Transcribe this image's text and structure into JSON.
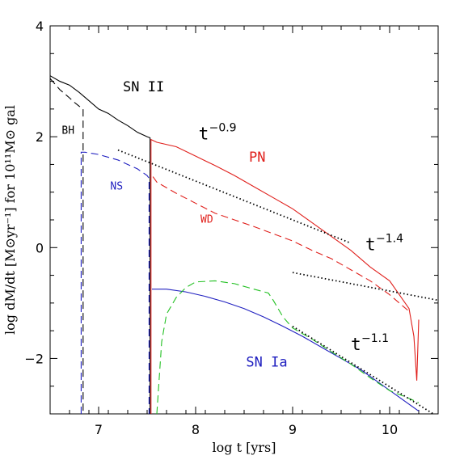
{
  "chart_data": {
    "type": "line",
    "xlabel": "log t [yrs]",
    "ylabel": "log dM/dt [M⊙yr⁻¹] for 10¹¹M⊙ gal",
    "xlim": [
      6.5,
      10.5
    ],
    "ylim": [
      -3,
      4
    ],
    "x_ticks": [
      7,
      8,
      9,
      10
    ],
    "y_ticks": [
      -2,
      0,
      2,
      4
    ],
    "x_tick_labels": [
      "7",
      "8",
      "9",
      "10"
    ],
    "y_tick_labels": [
      "−2",
      "0",
      "2",
      "4"
    ],
    "grid": false,
    "colors": {
      "black": "#000000",
      "red": "#e0201c",
      "blue": "#2020c0",
      "green": "#22c022"
    },
    "series": [
      {
        "name": "SN II",
        "color": "black",
        "dash": "solid",
        "x": [
          6.5,
          6.6,
          6.7,
          6.8,
          6.9,
          7.0,
          7.1,
          7.2,
          7.3,
          7.4,
          7.5,
          7.53,
          7.53
        ],
        "y": [
          3.1,
          3.0,
          2.93,
          2.8,
          2.65,
          2.5,
          2.42,
          2.3,
          2.2,
          2.08,
          2.0,
          1.98,
          -3.0
        ]
      },
      {
        "name": "BH",
        "color": "black",
        "dash": "dashed",
        "x": [
          6.5,
          6.6,
          6.7,
          6.75,
          6.8,
          6.84,
          6.84
        ],
        "y": [
          3.05,
          2.85,
          2.7,
          2.62,
          2.55,
          2.5,
          -3.0
        ]
      },
      {
        "name": "NS",
        "color": "blue",
        "dash": "dashed",
        "x": [
          6.82,
          6.82,
          6.86,
          7.0,
          7.2,
          7.4,
          7.5,
          7.52,
          7.52
        ],
        "y": [
          -3.0,
          1.72,
          1.72,
          1.68,
          1.58,
          1.42,
          1.3,
          1.25,
          -3.0
        ]
      },
      {
        "name": "PN",
        "color": "red",
        "dash": "solid",
        "x": [
          7.54,
          7.54,
          7.6,
          7.8,
          8.0,
          8.2,
          8.4,
          8.6,
          8.8,
          9.0,
          9.2,
          9.4,
          9.6,
          9.8,
          10.0,
          10.1,
          10.2,
          10.25,
          10.28,
          10.3
        ],
        "y": [
          -3.0,
          1.95,
          1.9,
          1.82,
          1.65,
          1.48,
          1.3,
          1.1,
          0.9,
          0.7,
          0.45,
          0.2,
          -0.05,
          -0.35,
          -0.6,
          -0.85,
          -1.1,
          -1.6,
          -2.4,
          -1.3
        ]
      },
      {
        "name": "WD",
        "color": "red",
        "dash": "dashed",
        "x": [
          7.56,
          7.6,
          7.8,
          8.0,
          8.2,
          8.4,
          8.6,
          8.8,
          9.0,
          9.2,
          9.4,
          9.6,
          9.8,
          10.0,
          10.2
        ],
        "y": [
          1.28,
          1.18,
          0.98,
          0.8,
          0.62,
          0.5,
          0.38,
          0.25,
          0.12,
          -0.05,
          -0.2,
          -0.4,
          -0.6,
          -0.85,
          -1.15
        ]
      },
      {
        "name": "SN Ia",
        "color": "blue",
        "dash": "solid",
        "x": [
          7.55,
          7.7,
          7.9,
          8.1,
          8.3,
          8.5,
          8.7,
          8.9,
          9.1,
          9.3,
          9.5,
          9.7,
          9.9,
          10.1,
          10.3
        ],
        "y": [
          -0.75,
          -0.75,
          -0.8,
          -0.88,
          -0.98,
          -1.1,
          -1.25,
          -1.42,
          -1.6,
          -1.8,
          -2.0,
          -2.2,
          -2.45,
          -2.7,
          -2.95
        ]
      },
      {
        "name": "",
        "color": "green",
        "dash": "dashed",
        "x": [
          7.6,
          7.65,
          7.7,
          7.8,
          7.9,
          8.0,
          8.2,
          8.4,
          8.6,
          8.75,
          8.8,
          8.9,
          9.0,
          9.2,
          9.4,
          9.6,
          9.8,
          10.0,
          10.2,
          10.3
        ],
        "y": [
          -3.0,
          -1.7,
          -1.2,
          -0.9,
          -0.72,
          -0.62,
          -0.6,
          -0.65,
          -0.75,
          -0.82,
          -0.95,
          -1.25,
          -1.45,
          -1.65,
          -1.88,
          -2.1,
          -2.35,
          -2.58,
          -2.72,
          -2.8
        ]
      },
      {
        "name": "",
        "color": "black",
        "dash": "dotted",
        "x": [
          7.2,
          9.6
        ],
        "y": [
          1.76,
          0.08
        ]
      },
      {
        "name": "",
        "color": "black",
        "dash": "dotted",
        "x": [
          9.0,
          10.5
        ],
        "y": [
          -0.45,
          -0.95
        ]
      },
      {
        "name": "",
        "color": "black",
        "dash": "dotted",
        "x": [
          9.0,
          10.45
        ],
        "y": [
          -1.42,
          -3.0
        ]
      }
    ],
    "annotations": [
      {
        "text": "SN II",
        "x": 7.25,
        "y": 2.82,
        "color": "black"
      },
      {
        "text": "BH",
        "x": 6.62,
        "y": 2.05,
        "color": "black"
      },
      {
        "text": "NS",
        "x": 7.12,
        "y": 1.05,
        "color": "blue"
      },
      {
        "text": "PN",
        "x": 8.55,
        "y": 1.55,
        "color": "red"
      },
      {
        "text": "WD",
        "x": 8.05,
        "y": 0.45,
        "color": "red"
      },
      {
        "text": "SN Ia",
        "x": 8.52,
        "y": -2.15,
        "color": "blue"
      }
    ],
    "power_labels": [
      {
        "base": "t",
        "exp": "−0.9",
        "x": 8.03,
        "y": 1.95
      },
      {
        "base": "t",
        "exp": "−1.4",
        "x": 9.75,
        "y": -0.05
      },
      {
        "base": "t",
        "exp": "−1.1",
        "x": 9.6,
        "y": -1.85
      }
    ]
  }
}
